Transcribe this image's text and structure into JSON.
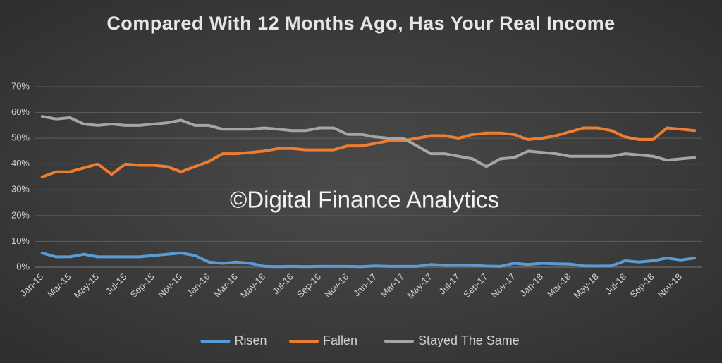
{
  "chart_data": {
    "type": "line",
    "title": "Compared With 12 Months Ago, Has Your Real Income",
    "annotation": "©Digital Finance Analytics",
    "categories": [
      "Jan-15",
      null,
      "Mar-15",
      null,
      "May-15",
      null,
      "Jul-15",
      null,
      "Sep-15",
      null,
      "Nov-15",
      null,
      "Jan-16",
      null,
      "Mar-16",
      null,
      "May-16",
      null,
      "Jul-16",
      null,
      "Sep-16",
      null,
      "Nov-16",
      null,
      "Jan-17",
      null,
      "Mar-17",
      null,
      "May-17",
      null,
      "Jul-17",
      null,
      "Sep-17",
      null,
      "Nov-17",
      null,
      "Jan-18",
      null,
      "Mar-18",
      null,
      "May-18",
      null,
      "Jul-18",
      null,
      "Sep-18",
      null,
      "Nov-18",
      null
    ],
    "series": [
      {
        "name": "Risen",
        "color": "#5b9bd5",
        "values": [
          5.5,
          4,
          4,
          5,
          4,
          4,
          4,
          4,
          4.5,
          5,
          5.5,
          4.5,
          2,
          1.5,
          2,
          1.5,
          0.3,
          0.2,
          0.3,
          0.2,
          0.3,
          0.3,
          0.3,
          0.2,
          0.5,
          0.3,
          0.3,
          0.3,
          1,
          0.7,
          0.8,
          0.7,
          0.4,
          0.3,
          1.5,
          1,
          1.5,
          1.3,
          1.2,
          0.5,
          0.4,
          0.5,
          2.5,
          2,
          2.5,
          3.5,
          2.8,
          3.5
        ]
      },
      {
        "name": "Fallen",
        "color": "#ed7d31",
        "values": [
          35,
          37,
          37,
          38.5,
          40,
          36,
          40,
          39.5,
          39.5,
          39,
          37,
          39,
          41,
          44,
          44,
          44.5,
          45,
          46,
          46,
          45.5,
          45.5,
          45.5,
          47,
          47,
          48,
          49,
          49,
          50,
          51,
          51,
          50,
          51.5,
          52,
          52,
          51.5,
          49.5,
          50,
          51,
          52.5,
          54,
          54,
          53,
          50.5,
          49.5,
          49.5,
          54,
          53.5,
          53
        ]
      },
      {
        "name": "Stayed The Same",
        "color": "#a5a5a5",
        "values": [
          58.5,
          57.5,
          58,
          55.5,
          55,
          55.5,
          55,
          55,
          55.5,
          56,
          57,
          55,
          55,
          53.5,
          53.5,
          53.5,
          54,
          53.5,
          53,
          53,
          54,
          54,
          51.5,
          51.5,
          50.5,
          50,
          50,
          47,
          44,
          44,
          43,
          42,
          39,
          42,
          42.5,
          45,
          44.5,
          44,
          43,
          43,
          43,
          43,
          44,
          43.5,
          43,
          41.5,
          42,
          42.5
        ]
      }
    ],
    "ylim": [
      0,
      70
    ],
    "yticks": [
      {
        "value": 0,
        "label": "0%"
      },
      {
        "value": 10,
        "label": "10%"
      },
      {
        "value": 20,
        "label": "20%"
      },
      {
        "value": 30,
        "label": "30%"
      },
      {
        "value": 40,
        "label": "40%"
      },
      {
        "value": 50,
        "label": "50%"
      },
      {
        "value": 60,
        "label": "60%"
      },
      {
        "value": 70,
        "label": "70%"
      }
    ],
    "grid": true,
    "legend": "bottom"
  }
}
